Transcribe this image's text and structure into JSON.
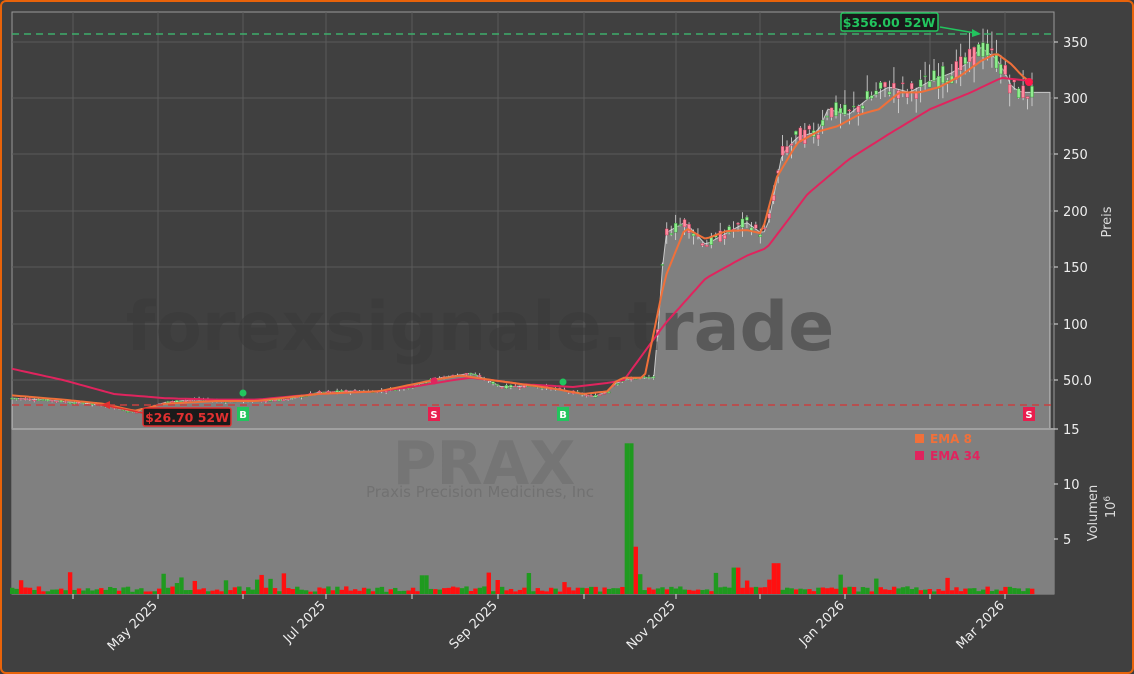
{
  "chart_data": {
    "type": "line",
    "subtype": "candlestick_with_volume",
    "ticker": "PRAX",
    "company": "Praxis Precision Medicines, Inc",
    "watermark": "forexsignale.trade",
    "xlabel": "",
    "x_ticks": [
      "May 2025",
      "Jul 2025",
      "Sep 2025",
      "Nov 2025",
      "Jan 2026",
      "Mar 2026"
    ],
    "price_axis": {
      "label": "Preis",
      "ticks": [
        "350",
        "300",
        "250",
        "200",
        "150",
        "100",
        "50.0",
        "15"
      ],
      "ylim": [
        15,
        375
      ]
    },
    "volume_axis": {
      "label": "Volumen",
      "unit": "10^6",
      "ticks": [
        "15",
        "10",
        "5"
      ],
      "ylim": [
        0,
        15
      ]
    },
    "legend": [
      {
        "label": "EMA 8",
        "color": "#f0703a"
      },
      {
        "label": "EMA 34",
        "color": "#e0245e"
      }
    ],
    "annotations": {
      "high_52w": {
        "label": "$356.00 52W",
        "value": 356.0,
        "color": "#22c55e"
      },
      "low_52w": {
        "label": "$26.70 52W",
        "value": 26.7,
        "color": "#e03030"
      }
    },
    "signals": [
      {
        "type": "B",
        "x_approx": "Jun 2025"
      },
      {
        "type": "S",
        "x_approx": "Aug 2025"
      },
      {
        "type": "B",
        "x_approx": "Sep 2025"
      },
      {
        "type": "S",
        "x_approx": "Mar 2026"
      }
    ],
    "series": [
      {
        "name": "Close (approx)",
        "x": [
          0,
          0.03,
          0.06,
          0.09,
          0.12,
          0.15,
          0.18,
          0.21,
          0.24,
          0.27,
          0.3,
          0.33,
          0.36,
          0.39,
          0.42,
          0.45,
          0.48,
          0.51,
          0.54,
          0.57,
          0.585,
          0.59,
          0.6,
          0.615,
          0.63,
          0.64,
          0.66,
          0.68,
          0.7,
          0.72,
          0.735,
          0.74,
          0.755,
          0.77,
          0.79,
          0.8,
          0.82,
          0.84,
          0.86,
          0.88,
          0.9,
          0.92,
          0.935,
          0.95,
          0.965,
          0.975,
          0.98,
          0.99,
          1.0
        ],
        "values": [
          37,
          36,
          34,
          32,
          27,
          34,
          36,
          35,
          35,
          36,
          41,
          42,
          42,
          45,
          52,
          56,
          45,
          46,
          43,
          38,
          42,
          47,
          50,
          52,
          52,
          180,
          190,
          170,
          180,
          190,
          180,
          183,
          250,
          265,
          270,
          290,
          285,
          300,
          310,
          305,
          315,
          322,
          330,
          345,
          335,
          320,
          310,
          305,
          305
        ]
      },
      {
        "name": "EMA 8",
        "x": [
          0,
          0.05,
          0.09,
          0.12,
          0.15,
          0.2,
          0.24,
          0.3,
          0.36,
          0.4,
          0.44,
          0.47,
          0.5,
          0.53,
          0.56,
          0.585,
          0.59,
          0.6,
          0.62,
          0.64,
          0.66,
          0.68,
          0.7,
          0.72,
          0.735,
          0.75,
          0.77,
          0.79,
          0.81,
          0.83,
          0.85,
          0.87,
          0.89,
          0.91,
          0.93,
          0.95,
          0.965,
          0.98,
          0.99,
          1.0
        ],
        "values": [
          39,
          36,
          33,
          28,
          33,
          35,
          35,
          40,
          42,
          48,
          54,
          50,
          47,
          44,
          40,
          42,
          48,
          52,
          52,
          140,
          185,
          175,
          182,
          183,
          180,
          230,
          260,
          270,
          275,
          285,
          290,
          305,
          305,
          310,
          320,
          333,
          340,
          330,
          320,
          313
        ]
      },
      {
        "name": "EMA 34",
        "x": [
          0,
          0.05,
          0.1,
          0.15,
          0.2,
          0.24,
          0.3,
          0.36,
          0.4,
          0.45,
          0.5,
          0.55,
          0.585,
          0.6,
          0.64,
          0.68,
          0.72,
          0.74,
          0.78,
          0.82,
          0.86,
          0.9,
          0.94,
          0.97,
          1.0
        ],
        "values": [
          60,
          50,
          40,
          37,
          36,
          36,
          40,
          42,
          46,
          52,
          47,
          45,
          48,
          50,
          100,
          140,
          160,
          167,
          215,
          245,
          268,
          290,
          305,
          318,
          315
        ]
      }
    ],
    "volume": {
      "note": "Volume in millions; green = up day, red = down day",
      "spike": {
        "x_approx": "Oct 2025",
        "value": 13.7
      }
    }
  }
}
